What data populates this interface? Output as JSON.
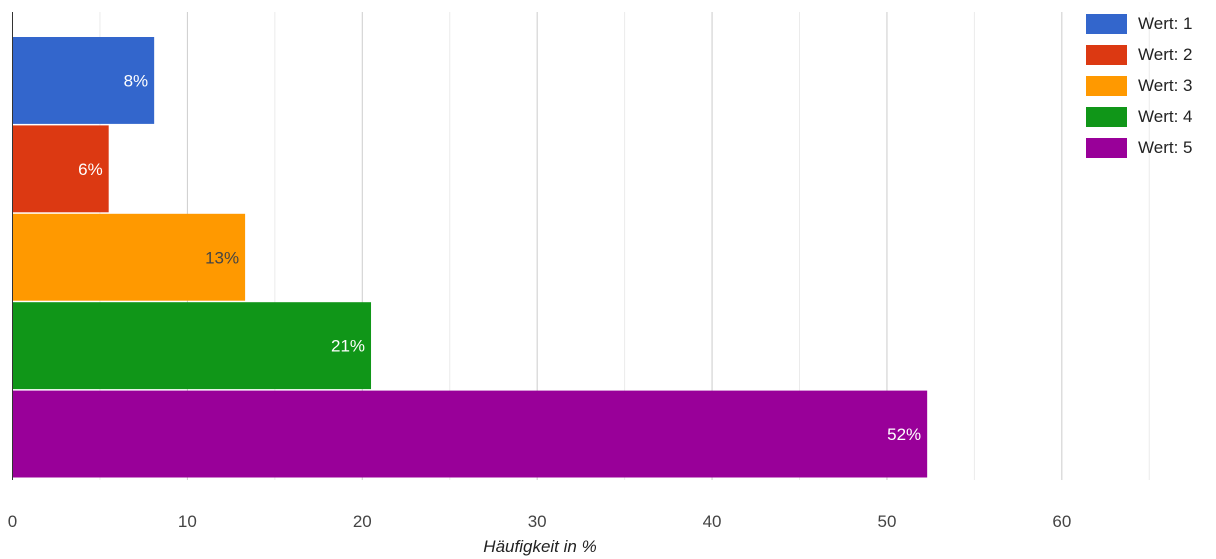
{
  "chart_data": {
    "type": "bar",
    "orientation": "horizontal",
    "categories": [
      "Wert: 1",
      "Wert: 2",
      "Wert: 3",
      "Wert: 4",
      "Wert: 5"
    ],
    "values": [
      8.1,
      5.5,
      13.3,
      20.5,
      52.3
    ],
    "data_labels": [
      "8%",
      "6%",
      "13%",
      "21%",
      "52%"
    ],
    "colors": [
      "#3366cc",
      "#dc3912",
      "#ff9900",
      "#109618",
      "#990099"
    ],
    "label_colors": [
      "#ffffff",
      "#ffffff",
      "#444444",
      "#ffffff",
      "#ffffff"
    ],
    "xlabel": "Häufigkeit in %",
    "xlim": [
      0,
      67.9
    ],
    "x_ticks": [
      0,
      10,
      20,
      30,
      40,
      50,
      60
    ],
    "x_tick_labels": [
      "0",
      "10",
      "20",
      "30",
      "40",
      "50",
      "60"
    ],
    "minor_ticks": [
      5,
      15,
      25,
      35,
      45,
      55,
      65
    ],
    "grid": true,
    "legend_position": "top-right"
  }
}
